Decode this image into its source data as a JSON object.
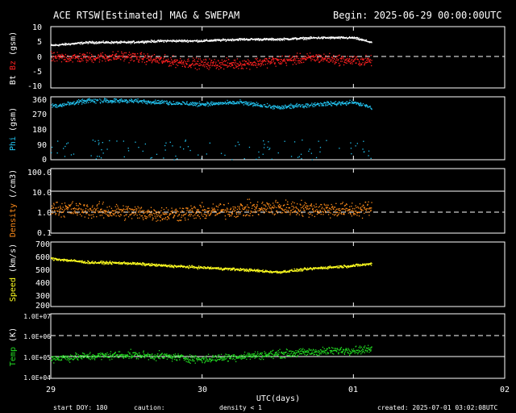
{
  "header": {
    "title": "ACE RTSW[Estimated] MAG & SWEPAM",
    "begin": "Begin: 2025-06-29 00:00:00UTC"
  },
  "footer": {
    "start_doy": "start DOY: 180",
    "caution": "caution:",
    "density_note": "density < 1",
    "created": "created: 2025-07-01 03:02:08UTC"
  },
  "colors": {
    "bt": "#ffffff",
    "bz": "#ff2020",
    "phi": "#22c3f0",
    "density": "#ff8c1a",
    "speed": "#ffff20",
    "temp": "#22dd22"
  },
  "chart_data": [
    {
      "type": "scatter",
      "panel": "mag",
      "ylabel_parts": [
        "Bt",
        "Bz",
        "(gsm)"
      ],
      "ylim": [
        -10,
        10
      ],
      "yticks": [
        "10",
        "5",
        "0",
        "-5",
        "-10"
      ],
      "reference_lines": [
        {
          "y": 0,
          "style": "dashed"
        }
      ],
      "series": [
        {
          "name": "Bt",
          "x": [
            0,
            0.25,
            0.5,
            0.75,
            1.0,
            1.25,
            1.5,
            1.75,
            2.0,
            2.12
          ],
          "values": [
            4,
            5,
            5,
            5.5,
            5.5,
            6,
            6,
            6.5,
            6.5,
            5
          ]
        },
        {
          "name": "Bz",
          "x": [
            0,
            0.25,
            0.5,
            0.75,
            1.0,
            1.25,
            1.5,
            1.75,
            2.0,
            2.12
          ],
          "values": [
            0,
            0,
            0.5,
            -1,
            -2,
            -2,
            -1,
            0,
            -1,
            -1
          ]
        }
      ]
    },
    {
      "type": "scatter",
      "panel": "phi",
      "ylabel_parts": [
        "Phi",
        "(gsm)"
      ],
      "ylim": [
        0,
        360
      ],
      "yticks": [
        "360",
        "270",
        "180",
        "90",
        "0"
      ],
      "series": [
        {
          "name": "Phi",
          "x": [
            0,
            0.25,
            0.5,
            0.75,
            1.0,
            1.25,
            1.5,
            1.75,
            2.0,
            2.12
          ],
          "values": [
            310,
            340,
            340,
            330,
            320,
            330,
            300,
            320,
            330,
            300
          ]
        }
      ]
    },
    {
      "type": "scatter",
      "panel": "density",
      "ylabel_parts": [
        "Density",
        "(/cm3)"
      ],
      "ylim": [
        0.1,
        100
      ],
      "scale": "log",
      "yticks": [
        "100.0",
        "10.0",
        "1.0",
        "0.1"
      ],
      "reference_lines": [
        {
          "y": 10,
          "style": "solid"
        },
        {
          "y": 1,
          "style": "dashed"
        }
      ],
      "series": [
        {
          "name": "Density",
          "x": [
            0,
            0.25,
            0.5,
            0.75,
            1.0,
            1.25,
            1.5,
            1.75,
            2.0,
            2.12
          ],
          "values": [
            1.5,
            1.2,
            1.0,
            0.8,
            1.0,
            1.3,
            1.6,
            1.4,
            1.2,
            1.5
          ]
        }
      ]
    },
    {
      "type": "scatter",
      "panel": "speed",
      "ylabel_parts": [
        "Speed",
        "(km/s)"
      ],
      "ylim": [
        200,
        700
      ],
      "yticks": [
        "700",
        "600",
        "500",
        "400",
        "300",
        "200"
      ],
      "series": [
        {
          "name": "Speed",
          "x": [
            0,
            0.25,
            0.5,
            0.75,
            1.0,
            1.25,
            1.5,
            1.75,
            2.0,
            2.12
          ],
          "values": [
            575,
            545,
            540,
            520,
            505,
            490,
            470,
            500,
            520,
            535
          ]
        }
      ]
    },
    {
      "type": "scatter",
      "panel": "temp",
      "ylabel_parts": [
        "Temp",
        "(K)"
      ],
      "ylim": [
        10000,
        10000000
      ],
      "scale": "log",
      "yticks": [
        "1.0E+07",
        "1.0E+06",
        "1.0E+05",
        "1.0E+04"
      ],
      "reference_lines": [
        {
          "y": 1000000,
          "style": "dashed"
        },
        {
          "y": 100000,
          "style": "solid"
        }
      ],
      "series": [
        {
          "name": "Temp",
          "x": [
            0,
            0.25,
            0.5,
            0.75,
            1.0,
            1.25,
            1.5,
            1.75,
            2.0,
            2.12
          ],
          "values": [
            90000,
            110000,
            130000,
            110000,
            80000,
            110000,
            140000,
            180000,
            220000,
            230000
          ]
        }
      ]
    }
  ],
  "xaxis": {
    "label": "UTC(days)",
    "ticks": [
      {
        "x": 0,
        "label": "29"
      },
      {
        "x": 1,
        "label": "30"
      },
      {
        "x": 2,
        "label": "01"
      },
      {
        "x": 3,
        "label": "02"
      }
    ],
    "xlim": [
      0,
      3
    ]
  }
}
